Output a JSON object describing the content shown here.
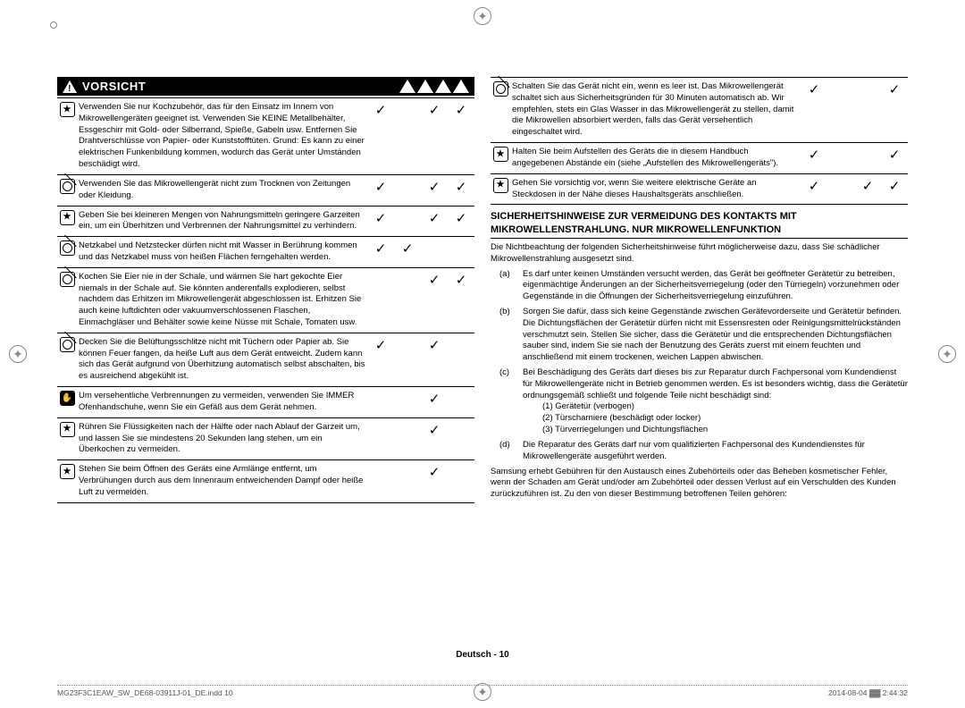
{
  "registration_marks": {
    "color": "#888888"
  },
  "header": {
    "warn_label": "VORSICHT",
    "title_fontsize": 13,
    "bg": "#000000",
    "fg": "#ffffff"
  },
  "icons": {
    "star": "★",
    "prohibit": "⊘",
    "glove": "✋"
  },
  "left_rows": [
    {
      "icon": "star",
      "text": "Verwenden Sie nur Kochzubehör, das für den Einsatz im Innern von Mikrowellengeräten geeignet ist. Verwenden Sie KEINE Metallbehälter, Essgeschirr mit Gold- oder Silberrand, Spieße, Gabeln usw. Entfernen Sie Drahtverschlüsse von Papier- oder Kunststofftüten. Grund: Es kann zu einer elektrischen Funkenbildung kommen, wodurch das Gerät unter Umständen beschädigt wird.",
      "c": [
        true,
        false,
        true,
        true
      ]
    },
    {
      "icon": "prohibit",
      "text": "Verwenden Sie das Mikrowellengerät nicht zum Trocknen von Zeitungen oder Kleidung.",
      "c": [
        true,
        false,
        true,
        true
      ]
    },
    {
      "icon": "star",
      "text": "Geben Sie bei kleineren Mengen von Nahrungsmitteln geringere Garzeiten ein, um ein Überhitzen und Verbrennen der Nahrungsmittel zu verhindern.",
      "c": [
        true,
        false,
        true,
        true
      ]
    },
    {
      "icon": "prohibit",
      "text": "Netzkabel und Netzstecker dürfen nicht mit Wasser in Berührung kommen und das Netzkabel muss von heißen Flächen ferngehalten werden.",
      "c": [
        true,
        true,
        false,
        false
      ]
    },
    {
      "icon": "prohibit",
      "text": "Kochen Sie Eier nie in der Schale, und wärmen Sie hart gekochte Eier niemals in der Schale auf. Sie könnten anderenfalls explodieren, selbst nachdem das Erhitzen im Mikrowellengerät abgeschlossen ist. Erhitzen Sie auch keine luftdichten oder vakuumverschlossenen Flaschen, Einmachgläser und Behälter sowie keine Nüsse mit Schale, Tomaten usw.",
      "c": [
        false,
        false,
        true,
        true
      ]
    },
    {
      "icon": "prohibit",
      "text": "Decken Sie die Belüftungsschlitze nicht mit Tüchern oder Papier ab. Sie können Feuer fangen, da heiße Luft aus dem Gerät entweicht. Zudem kann sich das Gerät aufgrund von Überhitzung automatisch selbst abschalten, bis es ausreichend abgekühlt ist.",
      "c": [
        true,
        false,
        true,
        false
      ]
    },
    {
      "icon": "glove",
      "text": "Um versehentliche Verbrennungen zu vermeiden, verwenden Sie IMMER Ofenhandschuhe, wenn Sie ein Gefäß aus dem Gerät nehmen.",
      "c": [
        false,
        false,
        true,
        false
      ]
    },
    {
      "icon": "star",
      "text": "Rühren Sie Flüssigkeiten nach der Hälfte oder nach Ablauf der Garzeit um, und lassen Sie sie mindestens 20 Sekunden lang stehen, um ein Überkochen zu vermeiden.",
      "c": [
        false,
        false,
        true,
        false
      ]
    },
    {
      "icon": "star",
      "text": "Stehen Sie beim Öffnen des Geräts eine Armlänge entfernt, um Verbrühungen durch aus dem Innenraum entweichenden Dampf oder heiße Luft zu vermeiden.",
      "c": [
        false,
        false,
        true,
        false
      ]
    }
  ],
  "right_rows": [
    {
      "icon": "prohibit",
      "text": "Schalten Sie das Gerät nicht ein, wenn es leer ist. Das Mikrowellengerät schaltet sich aus Sicherheitsgründen für 30 Minuten automatisch ab. Wir empfehlen, stets ein Glas Wasser in das Mikrowellengerät zu stellen, damit die Mikrowellen absorbiert werden, falls das Gerät versehentlich eingeschaltet wird.",
      "c": [
        true,
        false,
        false,
        true
      ]
    },
    {
      "icon": "star",
      "text": "Halten Sie beim Aufstellen des Geräts die in diesem Handbuch angegebenen Abstände ein (siehe „Aufstellen des Mikrowellengeräts\").",
      "c": [
        true,
        false,
        false,
        true
      ]
    },
    {
      "icon": "star",
      "text": "Gehen Sie vorsichtig vor, wenn Sie weitere elektrische Geräte an Steckdosen in der Nähe dieses Haushaltsgeräts anschließen.",
      "c": [
        true,
        false,
        true,
        true
      ]
    }
  ],
  "safety_section": {
    "heading": "SICHERHEITSHINWEISE ZUR VERMEIDUNG DES KONTAKTS MIT MIKROWELLENSTRAHLUNG. NUR MIKROWELLENFUNKTION",
    "intro": "Die Nichtbeachtung der folgenden Sicherheitshinweise führt möglicherweise dazu, dass Sie schädlicher Mikrowellenstrahlung ausgesetzt sind.",
    "items": [
      {
        "lbl": "(a)",
        "text": "Es darf unter keinen Umständen versucht werden, das Gerät bei geöffneter Gerätetür zu betreiben, eigenmächtige Änderungen an der Sicherheitsverriegelung (oder den Türriegeln) vorzunehmen oder Gegenstände in die Öffnungen der Sicherheitsverriegelung einzuführen."
      },
      {
        "lbl": "(b)",
        "text": "Sorgen Sie dafür, dass sich keine Gegenstände zwischen Gerätevorderseite und Gerätetür befinden. Die Dichtungsflächen der Gerätetür dürfen nicht mit Essensresten oder Reinigungsmittelrückständen verschmutzt sein. Stellen Sie sicher, dass die Gerätetür und die entsprechenden Dichtungsflächen sauber sind, indem Sie sie nach der Benutzung des Geräts zuerst mit einem feuchten und anschließend mit einem trockenen, weichen Lappen abwischen."
      },
      {
        "lbl": "(c)",
        "text": "Bei Beschädigung des Geräts darf dieses bis zur Reparatur durch Fachpersonal vom Kundendienst für Mikrowellengeräte nicht in Betrieb genommen werden. Es ist besonders wichtig, dass die Gerätetür ordnungsgemäß schließt und folgende Teile nicht beschädigt sind:"
      },
      {
        "lbl": "(d)",
        "text": "Die Reparatur des Geräts darf nur vom qualifizierten Fachpersonal des Kundendienstes für Mikrowellengeräte ausgeführt werden."
      }
    ],
    "c_sub": [
      "(1)   Gerätetür (verbogen)",
      "(2)   Türscharniere (beschädigt oder locker)",
      "(3)   Türverriegelungen und Dichtungsflächen"
    ],
    "outro": "Samsung erhebt Gebühren für den Austausch eines Zubehörteils oder das Beheben kosmetischer Fehler, wenn der Schaden am Gerät und/oder am Zubehörteil oder dessen Verlust auf ein Verschulden des Kunden zurückzuführen ist. Zu den von dieser Bestimmung betroffenen Teilen gehören:"
  },
  "footer": {
    "text": "Deutsch - 10"
  },
  "footline": {
    "left": "MG23F3C1EAW_SW_DE68-03911J-01_DE.indd   10",
    "right": "2014-08-04   ▓▓ 2:44:32"
  }
}
